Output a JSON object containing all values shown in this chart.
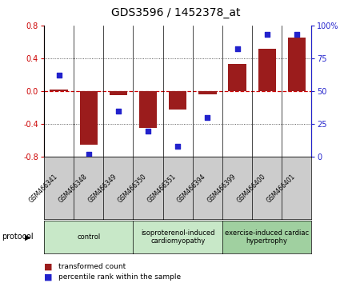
{
  "title": "GDS3596 / 1452378_at",
  "samples": [
    "GSM466341",
    "GSM466348",
    "GSM466349",
    "GSM466350",
    "GSM466351",
    "GSM466394",
    "GSM466399",
    "GSM466400",
    "GSM466401"
  ],
  "transformed_count": [
    0.02,
    -0.65,
    -0.05,
    -0.45,
    -0.22,
    -0.04,
    0.33,
    0.52,
    0.65
  ],
  "percentile_rank": [
    62,
    2,
    35,
    20,
    8,
    30,
    82,
    93,
    93
  ],
  "ylim_left": [
    -0.8,
    0.8
  ],
  "ylim_right": [
    0,
    100
  ],
  "yticks_left": [
    -0.8,
    -0.4,
    0.0,
    0.4,
    0.8
  ],
  "yticks_right": [
    0,
    25,
    50,
    75,
    100
  ],
  "groups": [
    {
      "label": "control",
      "start": 0,
      "end": 2,
      "color": "#c8e8c8"
    },
    {
      "label": "isoproterenol-induced\ncardiomyopathy",
      "start": 3,
      "end": 5,
      "color": "#c8e8c8"
    },
    {
      "label": "exercise-induced cardiac\nhypertrophy",
      "start": 6,
      "end": 8,
      "color": "#a0d0a0"
    }
  ],
  "bar_color": "#9b1c1c",
  "dot_color": "#2222cc",
  "zero_line_color": "#cc0000",
  "grid_color": "#555555",
  "protocol_label": "protocol",
  "legend_bar_label": "transformed count",
  "legend_dot_label": "percentile rank within the sample",
  "title_fontsize": 10,
  "tick_fontsize": 7,
  "sample_label_fontsize": 5.5,
  "group_label_fontsize": 6,
  "legend_fontsize": 6.5,
  "protocol_fontsize": 7
}
